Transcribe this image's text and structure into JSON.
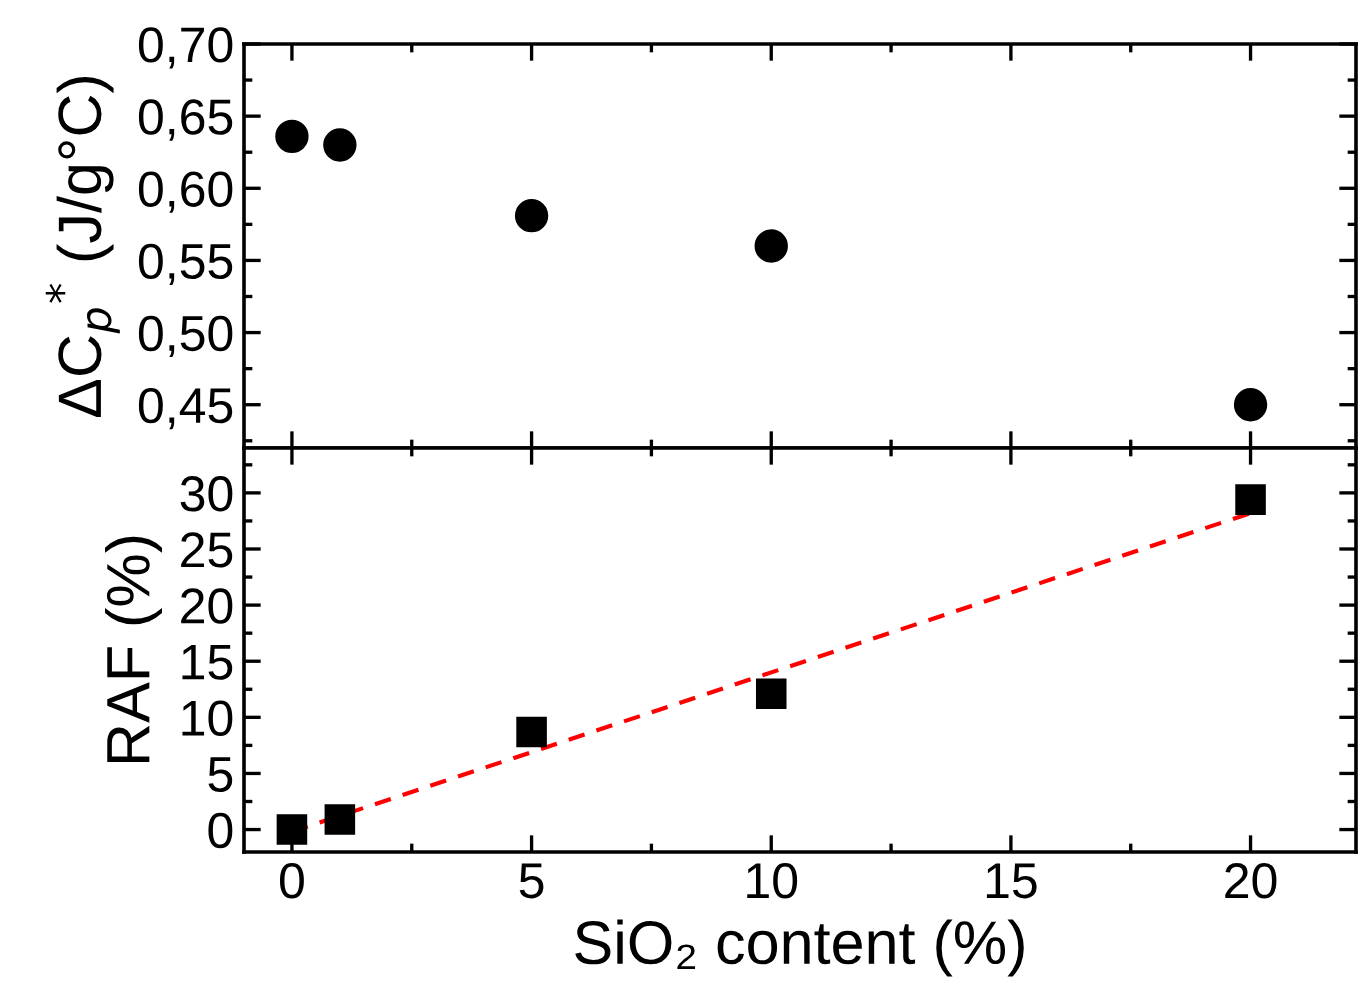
{
  "chart_data": [
    {
      "type": "scatter",
      "ylabel": "ΔC$_{p}$$^{*}$ (J/g°C)",
      "x": [
        0,
        1,
        5,
        10,
        20
      ],
      "series": [
        {
          "color": "#000000",
          "marker": "circle",
          "values": [
            0.636,
            0.63,
            0.581,
            0.56,
            0.45
          ]
        }
      ],
      "xlim": [
        -1,
        22.2
      ],
      "xticks": [
        0,
        5,
        10,
        15,
        20
      ],
      "ylim": [
        0.42,
        0.7
      ],
      "yticks": [
        {
          "value": 0.45,
          "label": "0,45"
        },
        {
          "value": 0.5,
          "label": "0,50"
        },
        {
          "value": 0.55,
          "label": "0,55"
        },
        {
          "value": 0.6,
          "label": "0,60"
        },
        {
          "value": 0.65,
          "label": "0,65"
        },
        {
          "value": 0.7,
          "label": "0,70"
        }
      ],
      "tick_labels": "y",
      "grid": false,
      "legend": false
    },
    {
      "type": "scatter",
      "ylabel": "RAF (%)",
      "xlabel": "SiO₂ content (%)",
      "x": [
        0,
        1,
        5,
        10,
        20
      ],
      "series": [
        {
          "color": "#000000",
          "marker": "square",
          "values": [
            0.0,
            0.9,
            8.7,
            12.1,
            29.4
          ]
        },
        {
          "type": "line",
          "color": "#ff0000",
          "line_style": "dashed",
          "marker": "none",
          "x": [
            0,
            20
          ],
          "values": [
            -0.2,
            28.2
          ]
        }
      ],
      "xlim": [
        -1,
        22.2
      ],
      "xticks": [
        0,
        5,
        10,
        15,
        20
      ],
      "ylim": [
        -2,
        34
      ],
      "yticks": [
        0,
        5,
        10,
        15,
        20,
        25,
        30
      ],
      "grid": false,
      "legend": false
    }
  ]
}
